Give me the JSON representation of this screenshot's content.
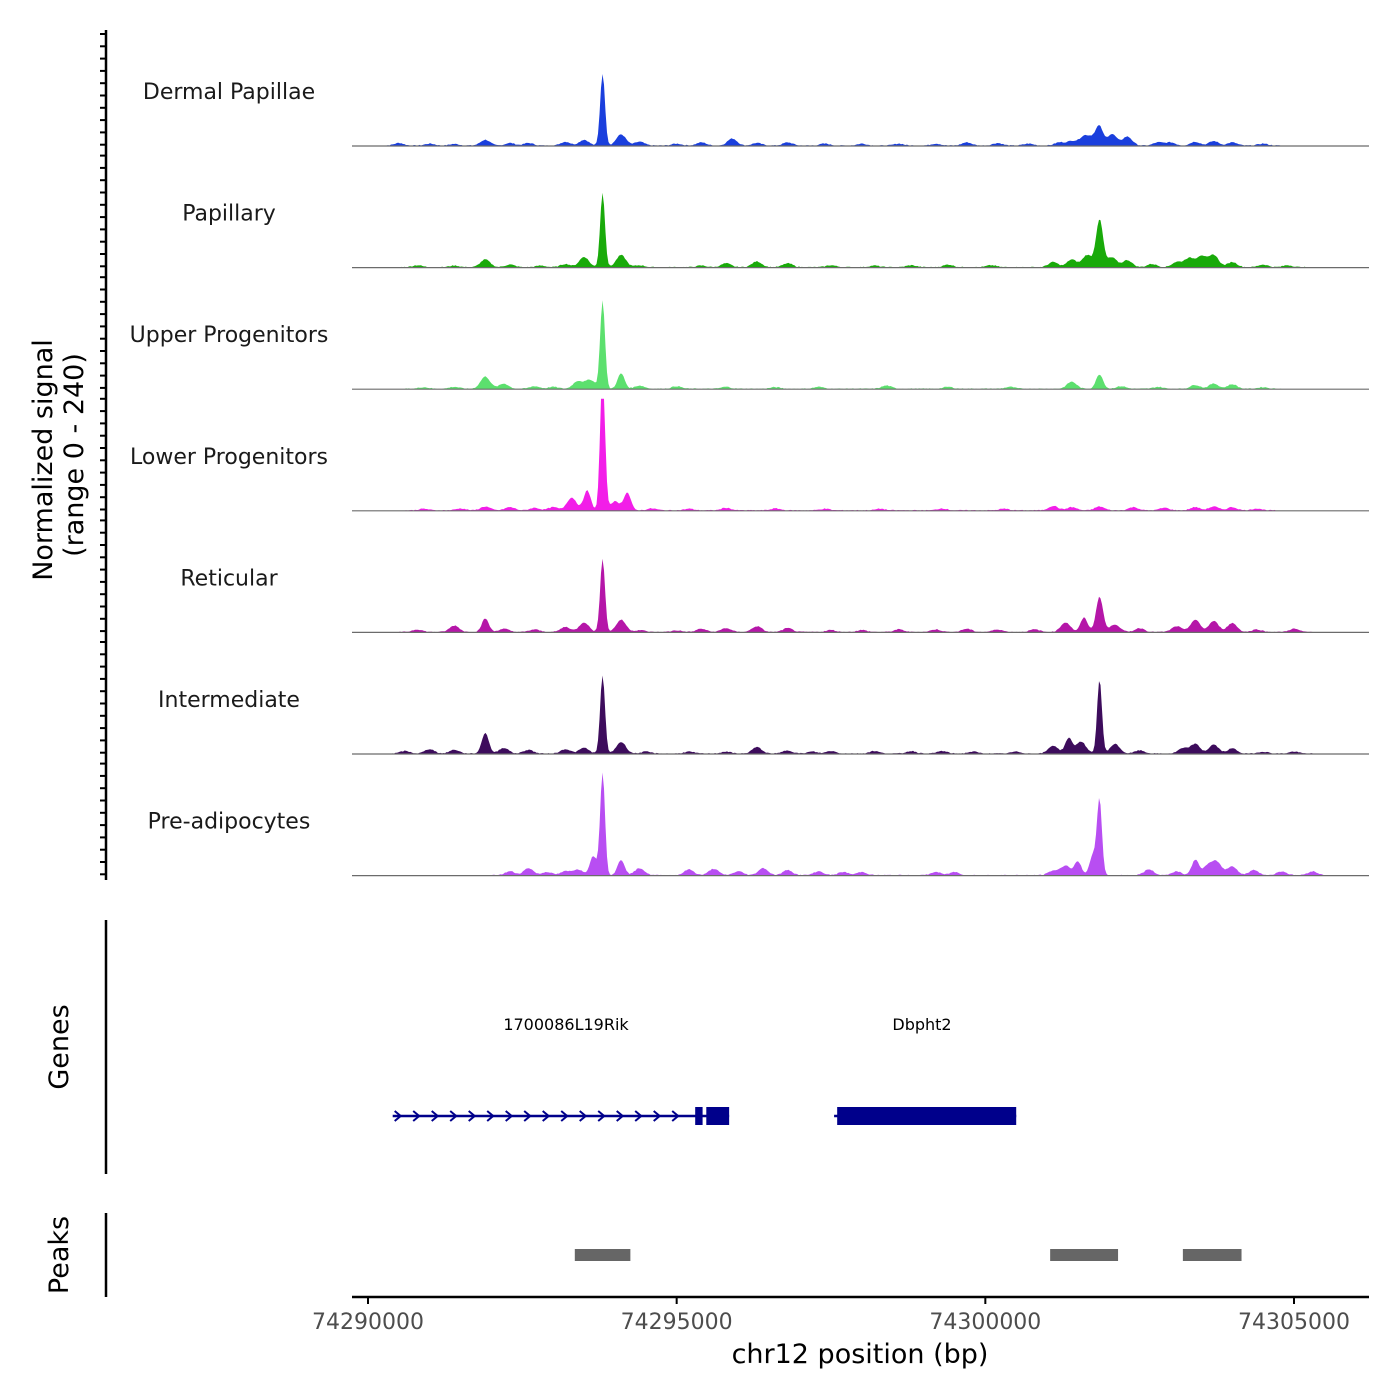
{
  "chart_data": {
    "type": "area",
    "chromosome": "chr12",
    "xlabel": "chr12 position (bp)",
    "xlim": [
      74289500,
      74305950
    ],
    "xticks": [
      74290000,
      74295000,
      74300000,
      74305000
    ],
    "xtick_labels": [
      "74290000",
      "74295000",
      "74300000",
      "74305000"
    ],
    "ylabel": "Normalized signal",
    "ylabel_sub": "(range 0 - 240)",
    "ylim": [
      0,
      240
    ],
    "tracks": [
      {
        "name": "Dermal Papillae",
        "color": "#1a3fdd",
        "peaks": [
          [
            74290500,
            8
          ],
          [
            74291000,
            6
          ],
          [
            74291400,
            5
          ],
          [
            74291900,
            18
          ],
          [
            74292300,
            8
          ],
          [
            74292600,
            8
          ],
          [
            74293200,
            12
          ],
          [
            74293500,
            18
          ],
          [
            74293800,
            225
          ],
          [
            74294100,
            35
          ],
          [
            74294400,
            12
          ],
          [
            74295000,
            6
          ],
          [
            74295400,
            10
          ],
          [
            74295900,
            22
          ],
          [
            74296300,
            8
          ],
          [
            74296800,
            10
          ],
          [
            74297400,
            6
          ],
          [
            74298000,
            6
          ],
          [
            74298600,
            6
          ],
          [
            74299200,
            6
          ],
          [
            74299700,
            10
          ],
          [
            74300200,
            8
          ],
          [
            74300700,
            6
          ],
          [
            74301200,
            10
          ],
          [
            74301400,
            14
          ],
          [
            74301600,
            28
          ],
          [
            74301750,
            22
          ],
          [
            74301850,
            52
          ],
          [
            74302050,
            36
          ],
          [
            74302300,
            28
          ],
          [
            74302800,
            10
          ],
          [
            74303000,
            10
          ],
          [
            74303400,
            12
          ],
          [
            74303700,
            14
          ],
          [
            74304000,
            10
          ],
          [
            74304500,
            6
          ]
        ]
      },
      {
        "name": "Papillary",
        "color": "#19aa0a",
        "peaks": [
          [
            74290800,
            6
          ],
          [
            74291400,
            5
          ],
          [
            74291900,
            24
          ],
          [
            74292300,
            8
          ],
          [
            74292800,
            5
          ],
          [
            74293200,
            10
          ],
          [
            74293500,
            32
          ],
          [
            74293800,
            232
          ],
          [
            74294100,
            38
          ],
          [
            74294400,
            6
          ],
          [
            74295400,
            5
          ],
          [
            74295800,
            12
          ],
          [
            74296300,
            18
          ],
          [
            74296800,
            12
          ],
          [
            74297500,
            6
          ],
          [
            74298200,
            5
          ],
          [
            74298800,
            6
          ],
          [
            74299400,
            8
          ],
          [
            74300100,
            6
          ],
          [
            74301100,
            16
          ],
          [
            74301400,
            24
          ],
          [
            74301650,
            38
          ],
          [
            74301850,
            148
          ],
          [
            74302050,
            30
          ],
          [
            74302300,
            22
          ],
          [
            74302700,
            10
          ],
          [
            74303100,
            16
          ],
          [
            74303300,
            28
          ],
          [
            74303500,
            35
          ],
          [
            74303700,
            38
          ],
          [
            74304000,
            16
          ],
          [
            74304500,
            8
          ],
          [
            74304900,
            6
          ]
        ]
      },
      {
        "name": "Upper Progenitors",
        "color": "#5ce06e",
        "peaks": [
          [
            74290900,
            5
          ],
          [
            74291400,
            6
          ],
          [
            74291900,
            38
          ],
          [
            74292200,
            16
          ],
          [
            74292700,
            8
          ],
          [
            74293000,
            6
          ],
          [
            74293400,
            24
          ],
          [
            74293600,
            28
          ],
          [
            74293800,
            275
          ],
          [
            74294100,
            48
          ],
          [
            74294400,
            10
          ],
          [
            74295000,
            8
          ],
          [
            74295800,
            6
          ],
          [
            74296600,
            5
          ],
          [
            74297300,
            6
          ],
          [
            74298400,
            10
          ],
          [
            74299400,
            6
          ],
          [
            74300400,
            6
          ],
          [
            74301400,
            22
          ],
          [
            74301850,
            45
          ],
          [
            74302200,
            8
          ],
          [
            74302800,
            6
          ],
          [
            74303400,
            12
          ],
          [
            74303700,
            16
          ],
          [
            74304000,
            14
          ],
          [
            74304500,
            5
          ]
        ]
      },
      {
        "name": "Lower Progenitors",
        "color": "#f21ee8",
        "peaks": [
          [
            74290900,
            5
          ],
          [
            74291500,
            6
          ],
          [
            74291900,
            12
          ],
          [
            74292300,
            10
          ],
          [
            74292700,
            8
          ],
          [
            74293000,
            10
          ],
          [
            74293300,
            40
          ],
          [
            74293550,
            62
          ],
          [
            74293800,
            440
          ],
          [
            74294000,
            28
          ],
          [
            74294200,
            55
          ],
          [
            74294600,
            6
          ],
          [
            74295200,
            5
          ],
          [
            74295800,
            8
          ],
          [
            74296600,
            6
          ],
          [
            74297400,
            5
          ],
          [
            74298300,
            5
          ],
          [
            74299300,
            6
          ],
          [
            74300300,
            5
          ],
          [
            74301100,
            14
          ],
          [
            74301400,
            10
          ],
          [
            74301850,
            12
          ],
          [
            74302400,
            10
          ],
          [
            74302900,
            8
          ],
          [
            74303400,
            10
          ],
          [
            74303700,
            12
          ],
          [
            74304000,
            10
          ],
          [
            74304400,
            6
          ]
        ]
      },
      {
        "name": "Reticular",
        "color": "#b516a8",
        "peaks": [
          [
            74290800,
            8
          ],
          [
            74291400,
            20
          ],
          [
            74291900,
            42
          ],
          [
            74292200,
            10
          ],
          [
            74292700,
            8
          ],
          [
            74293200,
            16
          ],
          [
            74293500,
            30
          ],
          [
            74293800,
            230
          ],
          [
            74294100,
            38
          ],
          [
            74294400,
            6
          ],
          [
            74295000,
            5
          ],
          [
            74295400,
            10
          ],
          [
            74295800,
            12
          ],
          [
            74296300,
            18
          ],
          [
            74296800,
            12
          ],
          [
            74297500,
            6
          ],
          [
            74298000,
            6
          ],
          [
            74298600,
            8
          ],
          [
            74299200,
            8
          ],
          [
            74299700,
            10
          ],
          [
            74300200,
            8
          ],
          [
            74300800,
            8
          ],
          [
            74301300,
            30
          ],
          [
            74301600,
            45
          ],
          [
            74301850,
            110
          ],
          [
            74302100,
            24
          ],
          [
            74302500,
            12
          ],
          [
            74303100,
            18
          ],
          [
            74303400,
            38
          ],
          [
            74303700,
            34
          ],
          [
            74304000,
            28
          ],
          [
            74304400,
            8
          ],
          [
            74305000,
            10
          ]
        ]
      },
      {
        "name": "Intermediate",
        "color": "#3d0c5c",
        "peaks": [
          [
            74290600,
            8
          ],
          [
            74291000,
            14
          ],
          [
            74291400,
            12
          ],
          [
            74291900,
            65
          ],
          [
            74292200,
            18
          ],
          [
            74292600,
            12
          ],
          [
            74293200,
            14
          ],
          [
            74293500,
            18
          ],
          [
            74293800,
            245
          ],
          [
            74294100,
            36
          ],
          [
            74294500,
            6
          ],
          [
            74295200,
            6
          ],
          [
            74295800,
            6
          ],
          [
            74296300,
            20
          ],
          [
            74296800,
            10
          ],
          [
            74297200,
            6
          ],
          [
            74297500,
            8
          ],
          [
            74298200,
            8
          ],
          [
            74298800,
            8
          ],
          [
            74299300,
            8
          ],
          [
            74299800,
            6
          ],
          [
            74300500,
            6
          ],
          [
            74301100,
            25
          ],
          [
            74301350,
            48
          ],
          [
            74301550,
            38
          ],
          [
            74301850,
            232
          ],
          [
            74302100,
            30
          ],
          [
            74302500,
            10
          ],
          [
            74303200,
            16
          ],
          [
            74303400,
            30
          ],
          [
            74303700,
            28
          ],
          [
            74304000,
            16
          ],
          [
            74304500,
            6
          ],
          [
            74305000,
            6
          ]
        ]
      },
      {
        "name": "Pre-adipocytes",
        "color": "#b84ef2",
        "peaks": [
          [
            74292300,
            12
          ],
          [
            74292600,
            22
          ],
          [
            74292900,
            10
          ],
          [
            74293200,
            12
          ],
          [
            74293400,
            18
          ],
          [
            74293650,
            60
          ],
          [
            74293800,
            320
          ],
          [
            74294100,
            48
          ],
          [
            74294400,
            22
          ],
          [
            74295200,
            18
          ],
          [
            74295600,
            20
          ],
          [
            74296000,
            12
          ],
          [
            74296400,
            22
          ],
          [
            74296800,
            16
          ],
          [
            74297300,
            12
          ],
          [
            74297700,
            10
          ],
          [
            74298000,
            10
          ],
          [
            74299200,
            10
          ],
          [
            74299500,
            10
          ],
          [
            74301100,
            14
          ],
          [
            74301300,
            30
          ],
          [
            74301500,
            42
          ],
          [
            74301750,
            65
          ],
          [
            74301850,
            230
          ],
          [
            74302650,
            18
          ],
          [
            74303100,
            12
          ],
          [
            74303400,
            48
          ],
          [
            74303600,
            28
          ],
          [
            74303750,
            40
          ],
          [
            74304000,
            28
          ],
          [
            74304350,
            16
          ],
          [
            74304800,
            12
          ],
          [
            74305300,
            12
          ]
        ]
      }
    ],
    "genes": [
      {
        "name": "1700086L19Rik",
        "start": 74290400,
        "end": 74295850,
        "strand": "+",
        "exons": [
          [
            74295300,
            74295420
          ],
          [
            74295480,
            74295850
          ]
        ]
      },
      {
        "name": "Dbpht2",
        "start": 74297550,
        "end": 74300500,
        "strand": "+",
        "exons": [
          [
            74297600,
            74300500
          ]
        ]
      }
    ],
    "peaks_track": [
      [
        74293350,
        74294250
      ],
      [
        74301050,
        74302150
      ],
      [
        74303200,
        74304150
      ]
    ],
    "panel_labels": {
      "genes": "Genes",
      "peaks": "Peaks"
    }
  },
  "colors": {
    "gene": "#00008b",
    "peak": "#666666",
    "baseline": "#6b6b6b",
    "axis": "#000000",
    "tick_label": "#4d4d4d"
  }
}
